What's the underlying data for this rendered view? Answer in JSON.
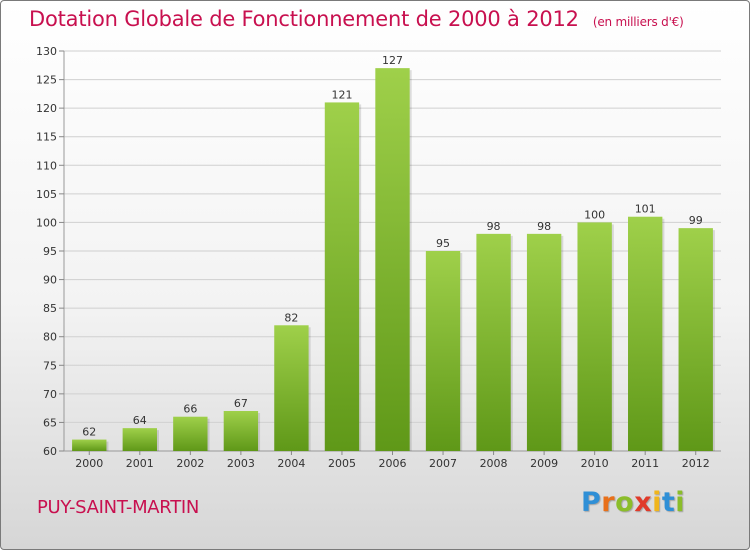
{
  "header": {
    "title": "Dotation Globale de Fonctionnement de 2000 à 2012",
    "unit": "(en milliers d'€)"
  },
  "footer": {
    "town": "PUY-SAINT-MARTIN",
    "logo_letters": [
      "P",
      "r",
      "o",
      "x",
      "i",
      "t",
      "i"
    ]
  },
  "colors": {
    "title": "#c8104f",
    "bar_top": "#9fd04a",
    "bar_bottom": "#5f9818"
  },
  "chart_data": {
    "type": "bar",
    "title": "Dotation Globale de Fonctionnement de 2000 à 2012",
    "subtitle": "(en milliers d'€)",
    "xlabel": "",
    "ylabel": "",
    "categories": [
      "2000",
      "2001",
      "2002",
      "2003",
      "2004",
      "2005",
      "2006",
      "2007",
      "2008",
      "2009",
      "2010",
      "2011",
      "2012"
    ],
    "values": [
      62,
      64,
      66,
      67,
      82,
      121,
      127,
      95,
      98,
      98,
      100,
      101,
      99
    ],
    "ylim": [
      60,
      130
    ],
    "yticks": [
      60,
      65,
      70,
      75,
      80,
      85,
      90,
      95,
      100,
      105,
      110,
      115,
      120,
      125,
      130
    ],
    "grid": true,
    "legend": "none"
  }
}
